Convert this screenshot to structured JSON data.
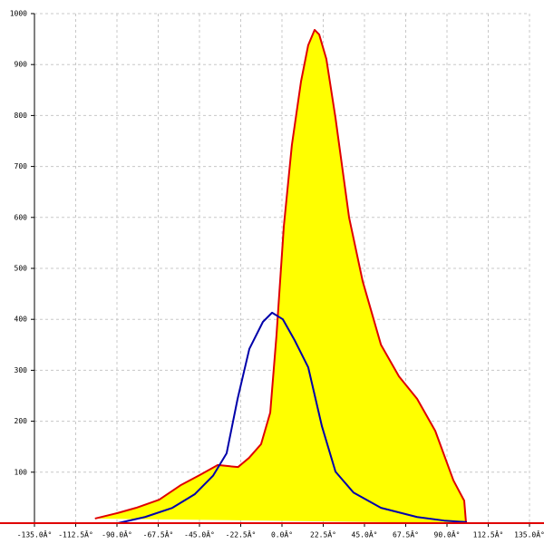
{
  "chart_data": {
    "type": "line",
    "xlim": [
      -135,
      135
    ],
    "ylim": [
      0,
      1000
    ],
    "xticks": [
      {
        "value": -135,
        "label": "-135.0Â°"
      },
      {
        "value": -112.5,
        "label": "-112.5Â°"
      },
      {
        "value": -90,
        "label": "-90.0Â°"
      },
      {
        "value": -67.5,
        "label": "-67.5Â°"
      },
      {
        "value": -45,
        "label": "-45.0Â°"
      },
      {
        "value": -22.5,
        "label": "-22.5Â°"
      },
      {
        "value": 0,
        "label": "0.0Â°"
      },
      {
        "value": 22.5,
        "label": "22.5Â°"
      },
      {
        "value": 45,
        "label": "45.0Â°"
      },
      {
        "value": 67.5,
        "label": "67.5Â°"
      },
      {
        "value": 90,
        "label": "90.0Â°"
      },
      {
        "value": 112.5,
        "label": "112.5Â°"
      },
      {
        "value": 135,
        "label": "135.0Â°"
      }
    ],
    "yticks": [
      100,
      200,
      300,
      400,
      500,
      600,
      700,
      800,
      900,
      1000
    ],
    "grid": true,
    "series": [
      {
        "color": "#e00000",
        "fill": "#ffff00",
        "x": [
          -102,
          -89.5,
          -79.6,
          -67,
          -55,
          -45,
          -35,
          -24,
          -18,
          -11.4,
          -6.4,
          -3,
          1,
          5.4,
          10.4,
          14.3,
          17.8,
          20.3,
          24.2,
          29.2,
          36.6,
          44,
          54,
          63.8,
          73.7,
          83.6,
          93.5,
          99.4,
          100.4
        ],
        "values": [
          9,
          20,
          30,
          46,
          75,
          94,
          114,
          110,
          128,
          155,
          217,
          368,
          582,
          742,
          867,
          938,
          968,
          959,
          911,
          795,
          600,
          475,
          350,
          288,
          244,
          181,
          84,
          44,
          0
        ]
      },
      {
        "color": "#0000aa",
        "x": [
          -89.5,
          -74.7,
          -59.8,
          -47.5,
          -37.6,
          -30.2,
          -24.2,
          -17.8,
          -10.4,
          -5.4,
          0.5,
          6.9,
          14.3,
          21.8,
          29.2,
          39,
          54,
          73.7,
          88.5,
          100.9
        ],
        "values": [
          0,
          12,
          30,
          57,
          93,
          137,
          244,
          342,
          395,
          413,
          400,
          359,
          306,
          190,
          101,
          60,
          30,
          12,
          5,
          2
        ]
      }
    ]
  }
}
